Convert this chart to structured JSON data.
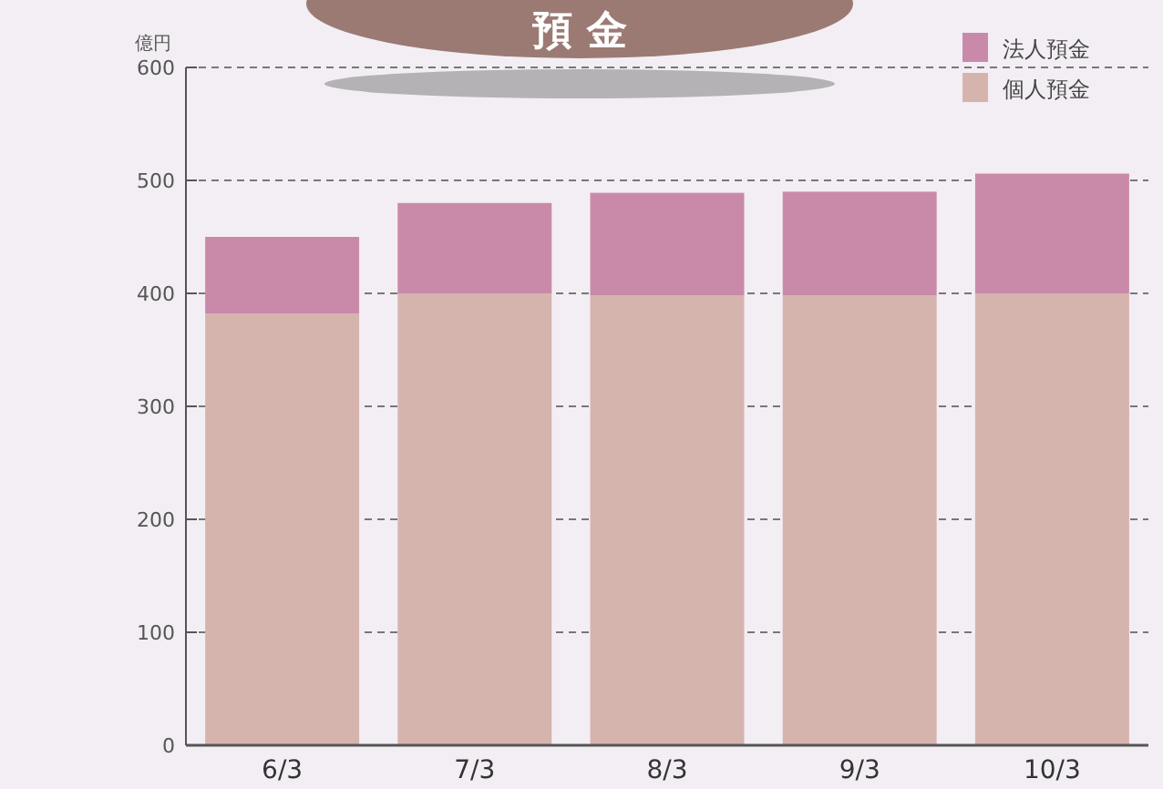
{
  "chart_data": {
    "type": "bar",
    "title": "預 金",
    "ylabel": "億円",
    "stacked": true,
    "categories": [
      "6/3",
      "7/3",
      "8/3",
      "9/3",
      "10/3"
    ],
    "series": [
      {
        "name": "個人預金",
        "color": "#d6b4ae",
        "values": [
          382,
          400,
          398,
          398,
          400
        ]
      },
      {
        "name": "法人預金",
        "color": "#c98aa9",
        "values": [
          68,
          80,
          91,
          92,
          106
        ]
      }
    ],
    "ylim": [
      0,
      600
    ],
    "yticks": [
      0,
      100,
      200,
      300,
      400,
      500,
      600
    ],
    "grid": "y",
    "legend": "top right"
  }
}
